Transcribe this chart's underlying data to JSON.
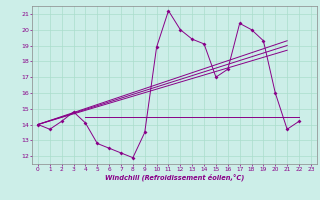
{
  "xlabel": "Windchill (Refroidissement éolien,°C)",
  "bg_color": "#cceee8",
  "grid_color": "#aaddcc",
  "line_color": "#880088",
  "xlim": [
    -0.5,
    23.5
  ],
  "ylim": [
    11.5,
    21.5
  ],
  "yticks": [
    12,
    13,
    14,
    15,
    16,
    17,
    18,
    19,
    20,
    21
  ],
  "xticks": [
    0,
    1,
    2,
    3,
    4,
    5,
    6,
    7,
    8,
    9,
    10,
    11,
    12,
    13,
    14,
    15,
    16,
    17,
    18,
    19,
    20,
    21,
    22,
    23
  ],
  "series1_x": [
    0,
    1,
    2,
    3,
    4,
    5,
    6,
    7,
    8,
    9,
    10,
    11,
    12,
    13,
    14,
    15,
    16,
    17,
    18,
    19,
    20,
    21,
    22
  ],
  "series1_y": [
    14.0,
    13.7,
    14.2,
    14.8,
    14.1,
    12.8,
    12.5,
    12.2,
    11.9,
    13.5,
    18.9,
    21.2,
    20.0,
    19.4,
    19.1,
    17.0,
    17.5,
    20.4,
    20.0,
    19.3,
    16.0,
    13.7,
    14.2
  ],
  "series2_x": [
    0,
    21
  ],
  "series2_y": [
    14.0,
    19.3
  ],
  "series3_x": [
    0,
    21
  ],
  "series3_y": [
    14.0,
    19.0
  ],
  "series4_x": [
    0,
    21
  ],
  "series4_y": [
    14.0,
    18.7
  ],
  "series5_x": [
    4,
    22
  ],
  "series5_y": [
    14.5,
    14.5
  ]
}
